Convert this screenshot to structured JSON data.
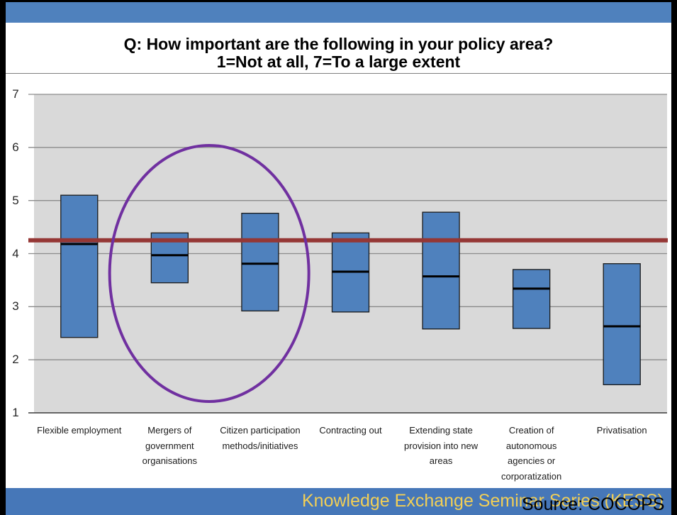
{
  "slide": {
    "banner_text": "Knowledge Exchange Seminar Series (KESS)",
    "source": "Source: COCOPS",
    "colors": {
      "header_band": "#4f81bd",
      "footer_band": "#4677b8",
      "banner_text": "#f2cf56"
    }
  },
  "chart_data": {
    "type": "bar",
    "title": "Q: How important are the following in your policy area?",
    "subtitle": "1=Not at all, 7=To a large extent",
    "categories": [
      "Flexible employment",
      "Mergers of\ngovernment\norganisations",
      "Citizen participation\nmethods/initiatives",
      "Contracting out",
      "Extending state\nprovision into new\nareas",
      "Creation of\nautonomous\nagencies or\ncorporatization",
      "Privatisation"
    ],
    "low": [
      2.42,
      3.45,
      2.92,
      2.9,
      2.58,
      2.59,
      1.53
    ],
    "median": [
      4.18,
      3.97,
      3.81,
      3.66,
      3.57,
      3.34,
      2.63
    ],
    "high": [
      5.1,
      4.39,
      4.76,
      4.39,
      4.78,
      3.7,
      3.81
    ],
    "ylim": [
      1,
      7
    ],
    "yticks": [
      1,
      2,
      3,
      4,
      5,
      6,
      7
    ],
    "grid": true,
    "reference_line": {
      "y": 4.25,
      "color": "#953735"
    },
    "highlight": {
      "category_indices": [
        1,
        2
      ],
      "color": "#7030a0"
    },
    "colors": {
      "bar": "#4f81bd",
      "bar_outline": "#1a1a1a",
      "median": "#000000",
      "plot_background": "#d9d9d9",
      "gridline": "#8c8c8c"
    }
  }
}
